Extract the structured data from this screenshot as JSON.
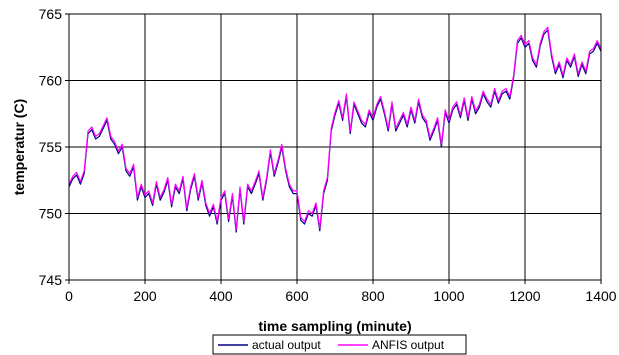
{
  "chart_data": {
    "type": "line",
    "title": "",
    "xlabel": "time sampling (minute)",
    "ylabel": "temperatur (C)",
    "xlim": [
      0,
      1400
    ],
    "ylim": [
      745,
      765
    ],
    "xticks": [
      0,
      200,
      400,
      600,
      800,
      1000,
      1200,
      1400
    ],
    "yticks": [
      745,
      750,
      755,
      760,
      765
    ],
    "grid": true,
    "legend_position": "bottom",
    "series": [
      {
        "name": "actual output",
        "color": "#000080",
        "x": [
          0,
          10,
          20,
          30,
          40,
          50,
          60,
          70,
          80,
          90,
          100,
          110,
          120,
          130,
          140,
          150,
          160,
          170,
          180,
          190,
          200,
          210,
          220,
          230,
          240,
          250,
          260,
          270,
          280,
          290,
          300,
          310,
          320,
          330,
          340,
          350,
          360,
          370,
          380,
          390,
          400,
          410,
          420,
          430,
          440,
          450,
          460,
          470,
          480,
          490,
          500,
          510,
          520,
          530,
          540,
          550,
          560,
          570,
          580,
          590,
          600,
          610,
          620,
          630,
          640,
          650,
          660,
          670,
          680,
          690,
          700,
          710,
          720,
          730,
          740,
          750,
          760,
          770,
          780,
          790,
          800,
          810,
          820,
          830,
          840,
          850,
          860,
          870,
          880,
          890,
          900,
          910,
          920,
          930,
          940,
          950,
          960,
          970,
          980,
          990,
          1000,
          1010,
          1020,
          1030,
          1040,
          1050,
          1060,
          1070,
          1080,
          1090,
          1100,
          1110,
          1120,
          1130,
          1140,
          1150,
          1160,
          1170,
          1180,
          1190,
          1200,
          1210,
          1220,
          1230,
          1240,
          1250,
          1260,
          1270,
          1280,
          1290,
          1300,
          1310,
          1320,
          1330,
          1340,
          1350,
          1360,
          1370,
          1380,
          1390,
          1400
        ],
        "y": [
          752.0,
          752.6,
          752.9,
          752.2,
          753.0,
          756.0,
          756.3,
          755.6,
          755.8,
          756.4,
          757.0,
          755.6,
          755.2,
          754.5,
          755.0,
          753.2,
          752.8,
          753.5,
          751.0,
          752.0,
          751.2,
          751.5,
          750.6,
          752.2,
          751.0,
          751.6,
          752.5,
          750.5,
          752.0,
          751.5,
          752.6,
          750.2,
          751.8,
          752.8,
          751.0,
          752.3,
          750.6,
          749.8,
          750.5,
          749.2,
          751.0,
          751.5,
          749.4,
          751.3,
          748.6,
          751.8,
          749.2,
          752.0,
          751.5,
          752.2,
          753.0,
          751.0,
          752.5,
          754.6,
          752.8,
          753.8,
          755.0,
          753.2,
          752.0,
          751.5,
          751.5,
          749.5,
          749.2,
          750.0,
          749.8,
          750.6,
          748.7,
          751.5,
          752.5,
          756.2,
          757.4,
          758.3,
          757.0,
          758.8,
          756.0,
          758.2,
          757.5,
          756.8,
          756.5,
          757.6,
          757.0,
          758.0,
          758.6,
          757.5,
          756.2,
          758.2,
          756.2,
          756.8,
          757.4,
          756.5,
          757.8,
          756.8,
          758.4,
          757.2,
          756.8,
          755.5,
          756.2,
          757.0,
          755.0,
          757.6,
          756.8,
          757.8,
          758.2,
          757.2,
          758.5,
          757.0,
          758.6,
          757.5,
          758.0,
          759.0,
          758.4,
          758.0,
          759.2,
          758.3,
          759.0,
          759.2,
          758.6,
          760.2,
          762.8,
          763.2,
          762.5,
          762.8,
          761.5,
          761.0,
          762.6,
          763.5,
          763.8,
          761.8,
          760.5,
          761.2,
          760.2,
          761.5,
          761.0,
          761.8,
          760.3,
          761.2,
          760.5,
          762.0,
          762.2,
          762.8,
          762.2
        ]
      },
      {
        "name": "ANFIS output",
        "color": "#ff00ff",
        "x": [
          0,
          10,
          20,
          30,
          40,
          50,
          60,
          70,
          80,
          90,
          100,
          110,
          120,
          130,
          140,
          150,
          160,
          170,
          180,
          190,
          200,
          210,
          220,
          230,
          240,
          250,
          260,
          270,
          280,
          290,
          300,
          310,
          320,
          330,
          340,
          350,
          360,
          370,
          380,
          390,
          400,
          410,
          420,
          430,
          440,
          450,
          460,
          470,
          480,
          490,
          500,
          510,
          520,
          530,
          540,
          550,
          560,
          570,
          580,
          590,
          600,
          610,
          620,
          630,
          640,
          650,
          660,
          670,
          680,
          690,
          700,
          710,
          720,
          730,
          740,
          750,
          760,
          770,
          780,
          790,
          800,
          810,
          820,
          830,
          840,
          850,
          860,
          870,
          880,
          890,
          900,
          910,
          920,
          930,
          940,
          950,
          960,
          970,
          980,
          990,
          1000,
          1010,
          1020,
          1030,
          1040,
          1050,
          1060,
          1070,
          1080,
          1090,
          1100,
          1110,
          1120,
          1130,
          1140,
          1150,
          1160,
          1170,
          1180,
          1190,
          1200,
          1210,
          1220,
          1230,
          1240,
          1250,
          1260,
          1270,
          1280,
          1290,
          1300,
          1310,
          1320,
          1330,
          1340,
          1350,
          1360,
          1370,
          1380,
          1390,
          1400
        ],
        "y": [
          752.2,
          752.8,
          753.1,
          752.4,
          753.2,
          756.2,
          756.5,
          755.8,
          756.0,
          756.6,
          757.2,
          755.8,
          755.4,
          754.7,
          755.2,
          753.4,
          753.0,
          753.7,
          751.2,
          752.2,
          751.4,
          751.7,
          750.8,
          752.4,
          751.2,
          751.8,
          752.7,
          750.7,
          752.2,
          751.7,
          752.8,
          750.4,
          752.0,
          753.0,
          751.2,
          752.5,
          750.8,
          750.0,
          750.7,
          749.4,
          751.2,
          751.7,
          749.6,
          751.5,
          748.8,
          752.0,
          749.4,
          752.2,
          751.7,
          752.4,
          753.2,
          751.2,
          752.7,
          754.8,
          753.0,
          754.0,
          755.2,
          753.4,
          752.2,
          751.7,
          751.7,
          749.7,
          749.4,
          750.2,
          750.0,
          750.8,
          748.9,
          751.7,
          752.7,
          756.4,
          757.6,
          758.5,
          757.2,
          759.0,
          756.2,
          758.4,
          757.7,
          757.0,
          756.7,
          757.8,
          757.2,
          758.2,
          758.8,
          757.7,
          756.4,
          758.4,
          756.4,
          757.0,
          757.6,
          756.7,
          758.0,
          757.0,
          758.6,
          757.4,
          757.0,
          755.7,
          756.4,
          757.2,
          755.2,
          757.8,
          757.0,
          758.0,
          758.4,
          757.4,
          758.7,
          757.2,
          758.8,
          757.7,
          758.2,
          759.2,
          758.6,
          758.2,
          759.4,
          758.5,
          759.2,
          759.4,
          758.8,
          760.4,
          763.0,
          763.4,
          762.7,
          763.0,
          761.7,
          761.2,
          762.8,
          763.7,
          764.0,
          762.0,
          760.7,
          761.4,
          760.4,
          761.7,
          761.2,
          762.0,
          760.5,
          761.4,
          760.7,
          762.2,
          762.4,
          763.0,
          762.4
        ]
      }
    ]
  }
}
